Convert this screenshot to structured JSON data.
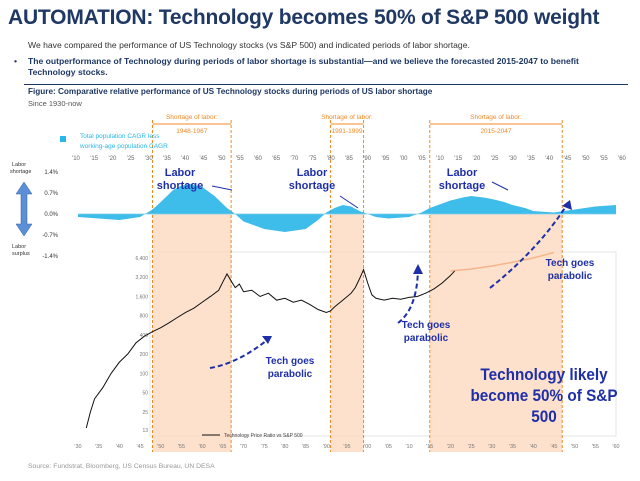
{
  "title": "AUTOMATION: Technology becomes 50% of S&P 500 weight",
  "subtitle": "We have compared the performance of US Technology stocks (vs S&P 500) and indicated periods of labor shortage.",
  "bullet": "The outperformance of Technology during periods of labor shortage is substantial—and we believe the forecasted 2015-2047 to benefit Technology stocks.",
  "figure_title": "Figure: Comparative relative performance of US Technology stocks during periods of US labor shortage",
  "since": "Since 1930-now",
  "source": "Source: Fundstrat, Bloomberg, US Census Bureau, UN DESA",
  "big_note": "Technology likely become 50% of S&P 500",
  "colors": {
    "title": "#1f3864",
    "cagr_fill": "#29b6e8",
    "shortage_fill": "#fcd9c0",
    "shortage_border": "#f08a24",
    "price_line": "#111111",
    "arrow": "#1f2fa8",
    "forecast_line": "#f5b58a"
  },
  "chart_data": [
    {
      "type": "area",
      "legend": [
        "Total population CAGR less working-age population CAGR"
      ],
      "y_axis_top_label": "Labor shortage",
      "y_axis_bottom_label": "Labor surplus",
      "yticks": [
        "1.4%",
        "0.7%",
        "0.0%",
        "-0.7%",
        "-1.4%"
      ],
      "ylim": [
        -1.4,
        1.4
      ],
      "xlim": [
        1930,
        2060
      ],
      "xtick_labels": [
        "'30",
        "'35",
        "'40",
        "'45",
        "'50",
        "'55",
        "'60",
        "'65",
        "'70",
        "'75",
        "'80",
        "'85",
        "'90",
        "'95",
        "'00",
        "'05",
        "'10",
        "'15",
        "'20",
        "'25",
        "'30",
        "'35",
        "'40",
        "'45",
        "'50",
        "'55",
        "'60"
      ],
      "x_top_labels": [
        "'10",
        "'15",
        "'20",
        "'25",
        "'30",
        "'35",
        "'40",
        "'45",
        "'50",
        "'55",
        "'60",
        "'65",
        "'70",
        "'75",
        "'80",
        "'85",
        "'90",
        "'95",
        "'00",
        "'05",
        "'10",
        "'15",
        "'20",
        "'25",
        "'30",
        "'35",
        "'40",
        "'45",
        "'50",
        "'55",
        "'60"
      ],
      "series": [
        {
          "x": [
            1930,
            1935,
            1940,
            1945,
            1948,
            1950,
            1953,
            1955,
            1957,
            1960,
            1963,
            1966,
            1968,
            1970,
            1975,
            1980,
            1985,
            1988,
            1990,
            1992,
            1994,
            1996,
            1998,
            2000,
            2002,
            2005,
            2010,
            2013,
            2015,
            2018,
            2020,
            2023,
            2025,
            2028,
            2030,
            2033,
            2035,
            2038,
            2040,
            2045,
            2050,
            2055,
            2060
          ],
          "values": [
            -0.1,
            -0.15,
            -0.2,
            -0.1,
            0.15,
            0.4,
            0.8,
            0.95,
            1.0,
            0.9,
            0.6,
            0.2,
            0.0,
            -0.25,
            -0.5,
            -0.6,
            -0.5,
            -0.2,
            0.05,
            0.2,
            0.3,
            0.25,
            0.1,
            0.0,
            -0.1,
            -0.15,
            -0.1,
            0.05,
            0.2,
            0.35,
            0.45,
            0.55,
            0.6,
            0.55,
            0.5,
            0.4,
            0.3,
            0.2,
            0.1,
            0.05,
            0.15,
            0.25,
            0.3
          ]
        }
      ],
      "shortage_periods": [
        {
          "label": "Shortage of labor: 1948-1967",
          "start": 1948,
          "end": 1967
        },
        {
          "label": "Shortage of labor: 1991-1999",
          "start": 1991,
          "end": 1999
        },
        {
          "label": "Shortage of labor: 2015-2047",
          "start": 2015,
          "end": 2047
        }
      ],
      "annotations": [
        {
          "text": "Labor shortage",
          "x": 1950
        },
        {
          "text": "Labor shortage",
          "x": 1982
        },
        {
          "text": "Labor shortage",
          "x": 2020
        }
      ]
    },
    {
      "type": "line",
      "legend": [
        "Technology Price Ratio vs S&P 500"
      ],
      "yticks": [
        "6,400",
        "3,200",
        "1,600",
        "800",
        "400",
        "200",
        "100",
        "50",
        "25",
        "13"
      ],
      "scale": "log",
      "ylim": [
        13,
        6400
      ],
      "xlim": [
        1930,
        2060
      ],
      "series": [
        {
          "name": "Technology Price Ratio vs S&P 500",
          "x": [
            1932,
            1933,
            1934,
            1936,
            1938,
            1940,
            1942,
            1944,
            1946,
            1948,
            1950,
            1952,
            1954,
            1956,
            1958,
            1960,
            1962,
            1964,
            1965,
            1966,
            1967,
            1968,
            1969,
            1970,
            1972,
            1974,
            1976,
            1978,
            1980,
            1982,
            1984,
            1986,
            1988,
            1990,
            1991,
            1992,
            1994,
            1996,
            1997,
            1998,
            1999,
            2000,
            2001,
            2002,
            2004,
            2006,
            2008,
            2010,
            2012,
            2014,
            2016,
            2018,
            2020,
            2021
          ],
          "values": [
            14,
            25,
            40,
            60,
            100,
            150,
            200,
            300,
            380,
            450,
            520,
            620,
            750,
            900,
            1050,
            1300,
            1600,
            2000,
            2700,
            3600,
            2800,
            2200,
            2500,
            1900,
            2000,
            1600,
            1800,
            1400,
            1500,
            1300,
            1400,
            1200,
            1000,
            900,
            950,
            1100,
            1400,
            1800,
            2200,
            3000,
            4200,
            2600,
            1700,
            1500,
            1400,
            1500,
            1450,
            1550,
            1600,
            1800,
            2100,
            2600,
            3400,
            4000
          ]
        }
      ],
      "forecast_curve": {
        "x": [
          2020,
          2025,
          2030,
          2035,
          2040,
          2045
        ],
        "values": [
          4000,
          4300,
          4800,
          5500,
          6400,
          7800
        ]
      },
      "annotations": [
        {
          "text": "Tech goes parabolic",
          "x": 1962
        },
        {
          "text": "Tech goes parabolic",
          "x": 1997
        },
        {
          "text": "Tech goes parabolic",
          "x": 2045
        }
      ]
    }
  ]
}
